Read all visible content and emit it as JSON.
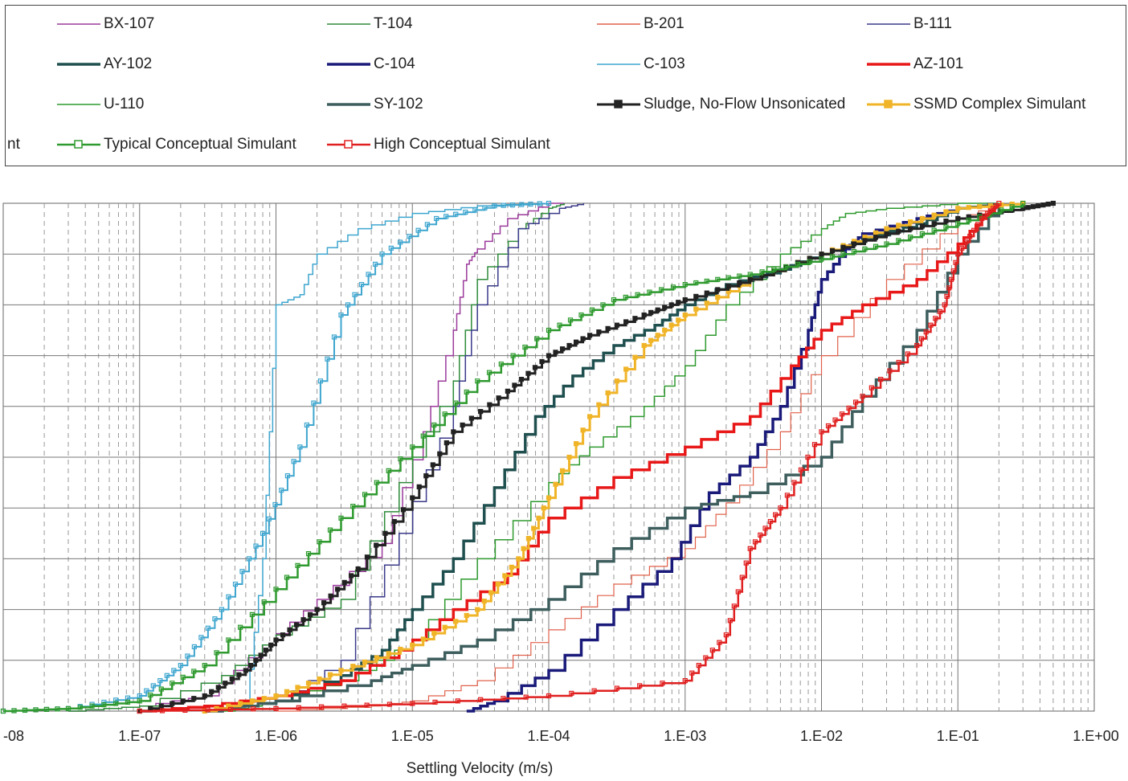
{
  "chart_data": {
    "type": "line",
    "title": "",
    "xlabel": "Settling Velocity (m/s)",
    "ylabel": "",
    "x_scale": "log",
    "xlim": [
      1e-08,
      1
    ],
    "ylim": [
      0,
      1
    ],
    "grid": true,
    "legend_placement": "top",
    "legend_cut_label": "nt",
    "x_tick_labels": [
      "-08",
      "1.E-07",
      "1.E-06",
      "1.E-05",
      "1.E-04",
      "1.E-03",
      "1.E-02",
      "1.E-01",
      "1.E+00"
    ],
    "series": [
      {
        "name": "BX-107",
        "color": "#9b3a9b",
        "width": 1.5,
        "marker": "none",
        "x": [
          3e-08,
          1e-07,
          3e-07,
          8e-07,
          2e-06,
          6e-06,
          1.2e-05,
          2e-05,
          2.5e-05,
          3e-05,
          5e-05,
          0.0001,
          0.00013
        ],
        "y": [
          0,
          0.01,
          0.03,
          0.13,
          0.22,
          0.33,
          0.55,
          0.75,
          0.88,
          0.91,
          0.97,
          1.0,
          1.0
        ]
      },
      {
        "name": "T-104",
        "color": "#2e8b3a",
        "width": 1.5,
        "marker": "none",
        "x": [
          3e-08,
          1e-07,
          4e-07,
          1e-06,
          3e-06,
          8e-06,
          2e-05,
          3e-05,
          6e-05,
          0.0001,
          0.00013
        ],
        "y": [
          0,
          0.01,
          0.07,
          0.15,
          0.22,
          0.45,
          0.65,
          0.85,
          0.95,
          0.99,
          1.0
        ]
      },
      {
        "name": "B-201",
        "color": "#e0604a",
        "width": 1.2,
        "marker": "none",
        "x": [
          1e-06,
          5e-06,
          1e-05,
          3e-05,
          0.0001,
          0.0003,
          0.001,
          0.002,
          0.005,
          0.01,
          0.03,
          0.1,
          0.2
        ],
        "y": [
          0,
          0.01,
          0.02,
          0.06,
          0.16,
          0.25,
          0.32,
          0.41,
          0.55,
          0.7,
          0.85,
          0.97,
          1.0
        ]
      },
      {
        "name": "B-111",
        "color": "#3a3a8a",
        "width": 1.5,
        "marker": "none",
        "x": [
          3e-07,
          1e-06,
          3e-06,
          8e-06,
          2e-05,
          3e-05,
          6e-05,
          0.00012,
          0.00018
        ],
        "y": [
          0,
          0.02,
          0.1,
          0.35,
          0.6,
          0.8,
          0.95,
          0.99,
          1.0
        ]
      },
      {
        "name": "AY-102",
        "color": "#1f4f4f",
        "width": 3.5,
        "marker": "none",
        "x": [
          3e-07,
          1e-06,
          3e-06,
          6e-06,
          1e-05,
          2e-05,
          4e-05,
          8e-05,
          0.00015,
          0.0003,
          0.0006,
          0.001,
          0.002,
          0.005,
          0.01,
          0.02,
          0.05,
          0.1,
          0.2
        ],
        "y": [
          0,
          0.02,
          0.07,
          0.12,
          0.2,
          0.3,
          0.44,
          0.58,
          0.66,
          0.72,
          0.76,
          0.8,
          0.84,
          0.87,
          0.9,
          0.93,
          0.96,
          0.99,
          1.0
        ]
      },
      {
        "name": "C-104",
        "color": "#1a1a7a",
        "width": 3.5,
        "marker": "none",
        "x": [
          2.5e-05,
          4e-05,
          0.0001,
          0.0003,
          0.0008,
          0.0015,
          0.003,
          0.005,
          0.008,
          0.01,
          0.015,
          0.02,
          0.05,
          0.1,
          0.2
        ],
        "y": [
          0,
          0.02,
          0.08,
          0.2,
          0.3,
          0.43,
          0.5,
          0.6,
          0.75,
          0.85,
          0.91,
          0.94,
          0.97,
          0.99,
          1.0
        ]
      },
      {
        "name": "C-103",
        "color": "#3fa6cf",
        "width": 1.5,
        "marker": "none",
        "x": [
          4.5e-07,
          6e-07,
          8e-07,
          1e-06,
          1.5e-06,
          2e-06,
          4e-06,
          1e-05,
          3e-05,
          8e-05
        ],
        "y": [
          0,
          0.01,
          0.3,
          0.8,
          0.82,
          0.9,
          0.95,
          0.98,
          0.995,
          1.0
        ]
      },
      {
        "name": "AZ-101",
        "color": "#e81818",
        "width": 3.5,
        "marker": "none",
        "x": [
          1e-07,
          3e-07,
          1e-06,
          3e-06,
          8e-06,
          2e-05,
          5e-05,
          0.0001,
          0.0003,
          0.001,
          0.003,
          0.006,
          0.01,
          0.02,
          0.05,
          0.1,
          0.15,
          0.2
        ],
        "y": [
          0,
          0.01,
          0.03,
          0.06,
          0.12,
          0.2,
          0.27,
          0.38,
          0.46,
          0.52,
          0.58,
          0.68,
          0.75,
          0.8,
          0.85,
          0.92,
          0.97,
          1.0
        ]
      },
      {
        "name": "U-110",
        "color": "#2e9a2e",
        "width": 1.5,
        "marker": "none",
        "x": [
          4e-07,
          1e-06,
          3e-06,
          1e-05,
          3e-05,
          0.0001,
          0.0002,
          0.0005,
          0.001,
          0.002,
          0.005,
          0.01,
          0.015,
          0.03,
          0.1,
          0.2
        ],
        "y": [
          0,
          0.02,
          0.06,
          0.14,
          0.3,
          0.45,
          0.52,
          0.6,
          0.68,
          0.8,
          0.9,
          0.95,
          0.98,
          0.99,
          1.0,
          1.0
        ]
      },
      {
        "name": "SY-102",
        "color": "#3e5e5e",
        "width": 3.5,
        "marker": "none",
        "x": [
          3e-07,
          1e-06,
          5e-06,
          1e-05,
          3e-05,
          0.0001,
          0.0003,
          0.001,
          0.003,
          0.01,
          0.02,
          0.05,
          0.1,
          0.2
        ],
        "y": [
          0,
          0.02,
          0.06,
          0.09,
          0.14,
          0.22,
          0.32,
          0.4,
          0.43,
          0.5,
          0.62,
          0.75,
          0.9,
          1.0
        ]
      },
      {
        "name": "Sludge, No-Flow Unsonicated",
        "color": "#222222",
        "width": 3,
        "marker": "filled-square",
        "x": [
          1e-07,
          3e-07,
          6e-07,
          1e-06,
          2e-06,
          4e-06,
          1e-05,
          2e-05,
          5e-05,
          0.0001,
          0.0002,
          0.0005,
          0.001,
          0.003,
          0.01,
          0.03,
          0.1,
          0.3,
          0.5
        ],
        "y": [
          0,
          0.03,
          0.08,
          0.14,
          0.2,
          0.28,
          0.42,
          0.55,
          0.63,
          0.7,
          0.74,
          0.78,
          0.81,
          0.85,
          0.9,
          0.94,
          0.97,
          0.99,
          1.0
        ]
      },
      {
        "name": "SSMD Complex Simulant",
        "color": "#f0b428",
        "width": 3,
        "marker": "filled-square",
        "x": [
          3e-07,
          1e-06,
          3e-06,
          1e-05,
          3e-05,
          6e-05,
          0.0001,
          0.0002,
          0.0005,
          0.001,
          0.003,
          0.01,
          0.03,
          0.1,
          0.3
        ],
        "y": [
          0,
          0.03,
          0.08,
          0.13,
          0.2,
          0.3,
          0.42,
          0.58,
          0.72,
          0.78,
          0.85,
          0.9,
          0.95,
          0.99,
          1.0
        ]
      },
      {
        "name": "Typical Conceptual Simulant",
        "color": "#2f9a2f",
        "width": 2.5,
        "marker": "open-square",
        "x": [
          1e-08,
          3e-08,
          1e-07,
          3e-07,
          1e-06,
          3e-06,
          1e-05,
          3e-05,
          0.0001,
          0.0003,
          0.001,
          0.003,
          0.01,
          0.03,
          0.1,
          0.3
        ],
        "y": [
          0,
          0.005,
          0.02,
          0.09,
          0.24,
          0.38,
          0.52,
          0.65,
          0.75,
          0.81,
          0.84,
          0.86,
          0.89,
          0.92,
          0.96,
          1.0
        ]
      },
      {
        "name": "High Conceptual Simulant",
        "color": "#e02020",
        "width": 2.5,
        "marker": "open-square",
        "x": [
          1e-07,
          1e-06,
          1e-05,
          0.0001,
          0.001,
          0.002,
          0.003,
          0.005,
          0.01,
          0.02,
          0.05,
          0.08,
          0.1,
          0.15,
          0.2
        ],
        "y": [
          0,
          0.005,
          0.015,
          0.03,
          0.06,
          0.15,
          0.32,
          0.4,
          0.55,
          0.62,
          0.72,
          0.8,
          0.9,
          0.97,
          1.0
        ]
      },
      {
        "name": "C-103 (conceptual)",
        "color": "#3fa6cf",
        "width": 2,
        "marker": "open-square",
        "legend": false,
        "x": [
          1e-08,
          3e-08,
          1e-07,
          2e-07,
          4e-07,
          8e-07,
          1.5e-06,
          3e-06,
          6e-06,
          1.5e-05,
          4e-05,
          0.0001
        ],
        "y": [
          0,
          0.005,
          0.03,
          0.09,
          0.2,
          0.35,
          0.52,
          0.78,
          0.9,
          0.97,
          0.995,
          1.0
        ]
      }
    ]
  }
}
